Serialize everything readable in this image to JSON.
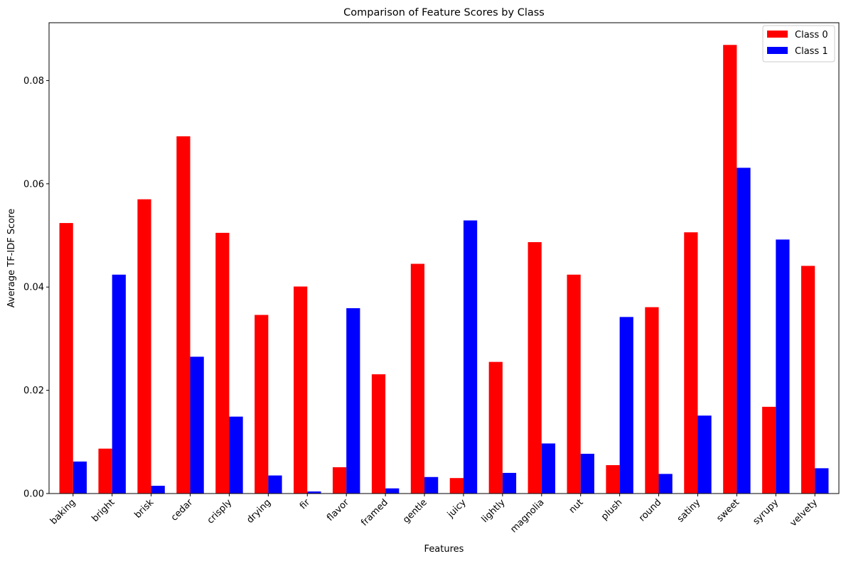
{
  "chart_data": {
    "type": "bar",
    "title": "Comparison of Feature Scores by Class",
    "xlabel": "Features",
    "ylabel": "Average TF-IDF Score",
    "ylim": [
      0,
      0.0912
    ],
    "yticks": [
      0.0,
      0.02,
      0.04,
      0.06,
      0.08
    ],
    "ytick_labels": [
      "0.00",
      "0.02",
      "0.04",
      "0.06",
      "0.08"
    ],
    "grid": false,
    "legend_position": "top-right",
    "categories": [
      "baking",
      "bright",
      "brisk",
      "cedar",
      "crisply",
      "drying",
      "fir",
      "flavor",
      "framed",
      "gentle",
      "juicy",
      "lightly",
      "magnolia",
      "nut",
      "plush",
      "round",
      "satiny",
      "sweet",
      "syrupy",
      "velvety"
    ],
    "series": [
      {
        "name": "Class 0",
        "color": "#ff0000",
        "values": [
          0.0524,
          0.0087,
          0.057,
          0.0692,
          0.0505,
          0.0346,
          0.0401,
          0.0051,
          0.0231,
          0.0445,
          0.003,
          0.0255,
          0.0487,
          0.0424,
          0.0055,
          0.0361,
          0.0506,
          0.0869,
          0.0168,
          0.0441
        ]
      },
      {
        "name": "Class 1",
        "color": "#0000ff",
        "values": [
          0.0062,
          0.0424,
          0.0015,
          0.0265,
          0.0149,
          0.0035,
          0.0004,
          0.0359,
          0.001,
          0.0032,
          0.0529,
          0.004,
          0.0097,
          0.0077,
          0.0342,
          0.0038,
          0.0151,
          0.0631,
          0.0492,
          0.0049
        ]
      }
    ]
  }
}
